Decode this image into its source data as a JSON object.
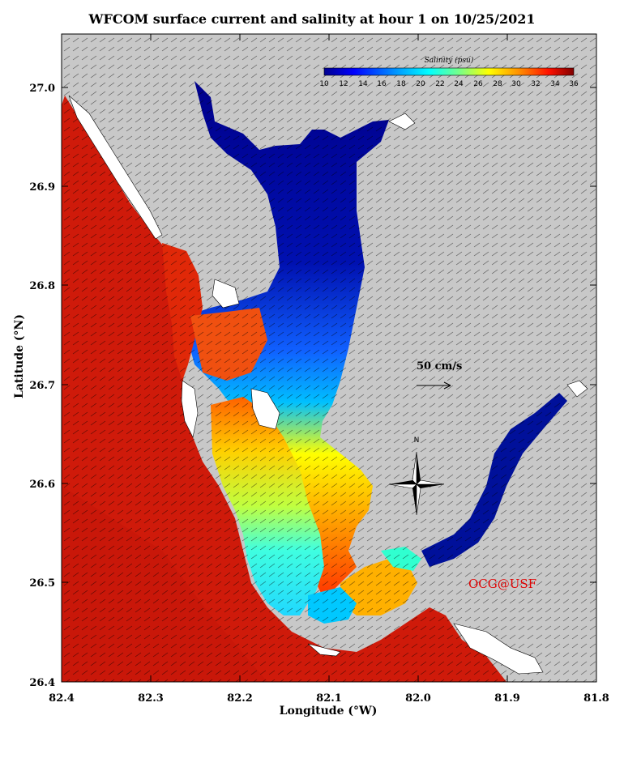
{
  "title": "WFCOM surface current and salinity at hour 1 on 10/25/2021",
  "axes": {
    "xlabel": "Longitude (°W)",
    "ylabel": "Latitude (°N)",
    "x_ticks": [
      "82.4",
      "82.3",
      "82.2",
      "82.1",
      "82.0",
      "81.9",
      "81.8"
    ],
    "y_ticks": [
      "27.0",
      "26.9",
      "26.8",
      "26.7",
      "26.6",
      "26.5",
      "26.4"
    ]
  },
  "colorbar": {
    "title": "Salinity (psu)",
    "ticks": [
      "10",
      "12",
      "14",
      "16",
      "18",
      "20",
      "22",
      "24",
      "26",
      "28",
      "30",
      "32",
      "34",
      "36"
    ]
  },
  "scale_label": "50 cm/s",
  "north_label": "N",
  "credit": "OCG@USF",
  "colors": {
    "land": "#c8c8c8",
    "gulf": "#cf1a0a",
    "fresh": "#00109a",
    "credit": "#e00000"
  }
}
